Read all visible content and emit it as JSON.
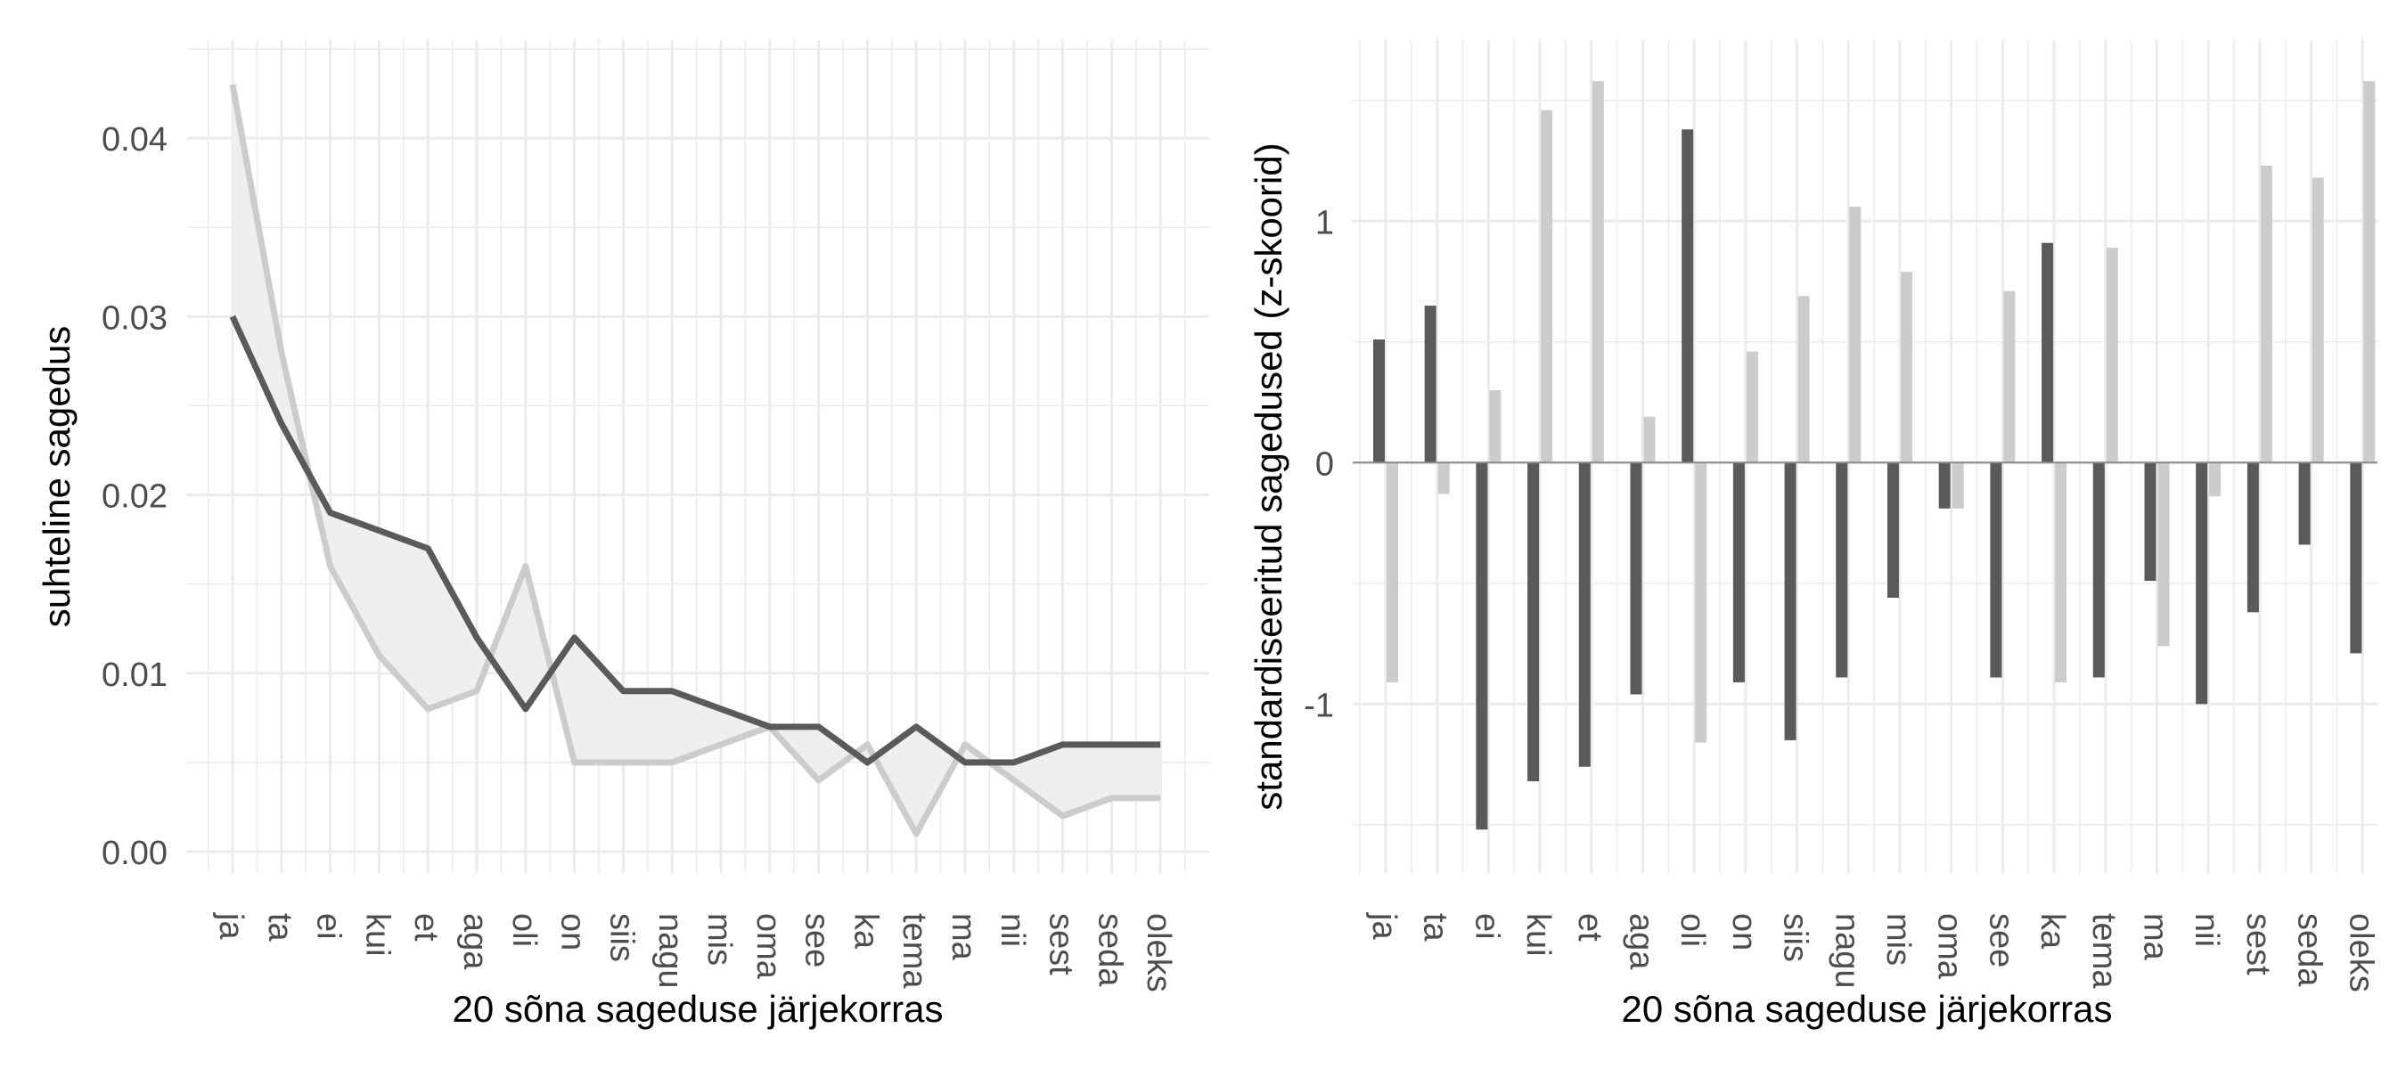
{
  "colors": {
    "dark": "#5a5a5a",
    "light": "#cccccc",
    "fill": "#efefef",
    "grid": "#ebebeb",
    "axis_text": "#4d4d4d",
    "label_text": "#000000"
  },
  "chart_data": [
    {
      "type": "line",
      "categories": [
        "ja",
        "ta",
        "ei",
        "kui",
        "et",
        "aga",
        "oli",
        "on",
        "siis",
        "nagu",
        "mis",
        "oma",
        "see",
        "ka",
        "tema",
        "ma",
        "nii",
        "sest",
        "seda",
        "oleks"
      ],
      "series": [
        {
          "color": "dark",
          "values": [
            0.03,
            0.024,
            0.019,
            0.018,
            0.017,
            0.012,
            0.008,
            0.012,
            0.009,
            0.009,
            0.008,
            0.007,
            0.007,
            0.005,
            0.007,
            0.005,
            0.005,
            0.006,
            0.006,
            0.006
          ]
        },
        {
          "color": "light",
          "values": [
            0.043,
            0.028,
            0.016,
            0.011,
            0.008,
            0.009,
            0.016,
            0.005,
            0.005,
            0.005,
            0.006,
            0.007,
            0.004,
            0.006,
            0.001,
            0.006,
            0.004,
            0.002,
            0.003,
            0.003
          ]
        }
      ],
      "shaded_between_series": true,
      "xlabel": "20 sõna sageduse järjekorras",
      "ylabel": "suhteline sagedus",
      "ylim": [
        -0.0012,
        0.0455
      ],
      "yticks": [
        0.0,
        0.01,
        0.02,
        0.03,
        0.04
      ],
      "ytick_labels": [
        "0.00",
        "0.01",
        "0.02",
        "0.03",
        "0.04"
      ],
      "grid": true,
      "legend": "none"
    },
    {
      "type": "bar",
      "categories": [
        "ja",
        "ta",
        "ei",
        "kui",
        "et",
        "aga",
        "oli",
        "on",
        "siis",
        "nagu",
        "mis",
        "oma",
        "see",
        "ka",
        "tema",
        "ma",
        "nii",
        "sest",
        "seda",
        "oleks"
      ],
      "series": [
        {
          "color": "dark",
          "values": [
            0.51,
            0.65,
            -1.52,
            -1.32,
            -1.26,
            -0.96,
            1.38,
            -0.91,
            -1.15,
            -0.89,
            -0.56,
            -0.19,
            -0.89,
            0.91,
            -0.89,
            -0.49,
            -1.0,
            -0.62,
            -0.34,
            -0.79
          ]
        },
        {
          "color": "light",
          "values": [
            -0.91,
            -0.13,
            0.3,
            1.46,
            1.58,
            0.19,
            -1.16,
            0.46,
            0.69,
            1.06,
            0.79,
            -0.19,
            0.71,
            -0.91,
            0.89,
            -0.76,
            -0.14,
            1.23,
            1.18,
            1.58
          ]
        }
      ],
      "xlabel": "20 sõna sageduse järjekorras",
      "ylabel": "standardiseeritud sagedused (z-skoorid)",
      "ylim": [
        -1.7,
        1.75
      ],
      "yticks": [
        -1,
        0,
        1
      ],
      "ytick_labels": [
        "-1",
        "0",
        "1"
      ],
      "zero_line": true,
      "grid": true,
      "legend": "none"
    }
  ]
}
